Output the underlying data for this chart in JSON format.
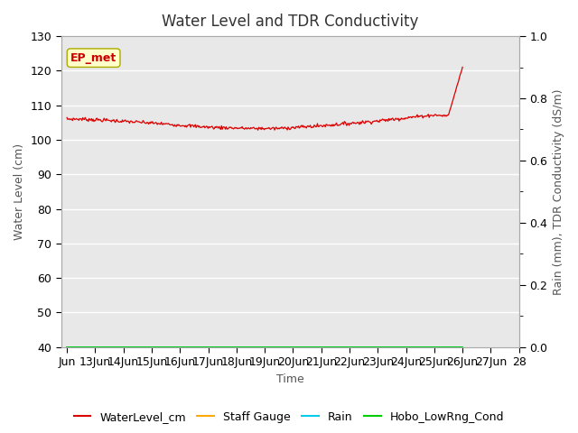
{
  "title": "Water Level and TDR Conductivity",
  "xlabel": "Time",
  "ylabel_left": "Water Level (cm)",
  "ylabel_right": "Rain (mm), TDR Conductivity (dS/m)",
  "ylim_left": [
    40,
    130
  ],
  "ylim_right": [
    0.0,
    1.0
  ],
  "yticks_left": [
    40,
    50,
    60,
    70,
    80,
    90,
    100,
    110,
    120,
    130
  ],
  "yticks_right": [
    0.0,
    0.2,
    0.4,
    0.6,
    0.8,
    1.0
  ],
  "yticks_right_minor": [
    0.1,
    0.3,
    0.5,
    0.7,
    0.9
  ],
  "xtick_labels": [
    "Jun",
    "13Jun",
    "14Jun",
    "15Jun",
    "16Jun",
    "17Jun",
    "18Jun",
    "19Jun",
    "20Jun",
    "21Jun",
    "22Jun",
    "23Jun",
    "24Jun",
    "25Jun",
    "26Jun",
    "27Jun",
    "28"
  ],
  "annotation_text": "EP_met",
  "annotation_box_color": "#ffffcc",
  "annotation_text_color": "#cc0000",
  "plot_bg_color": "#e8e8e8",
  "fig_bg_color": "#ffffff",
  "grid_color": "#ffffff",
  "line_color_water": "#dd0000",
  "line_color_staff": "#ffaa00",
  "line_color_rain": "#00ccee",
  "line_color_hobo": "#00cc00",
  "legend_labels": [
    "WaterLevel_cm",
    "Staff Gauge",
    "Rain",
    "Hobo_LowRng_Cond"
  ],
  "title_fontsize": 12,
  "axis_label_fontsize": 9,
  "tick_fontsize": 9
}
